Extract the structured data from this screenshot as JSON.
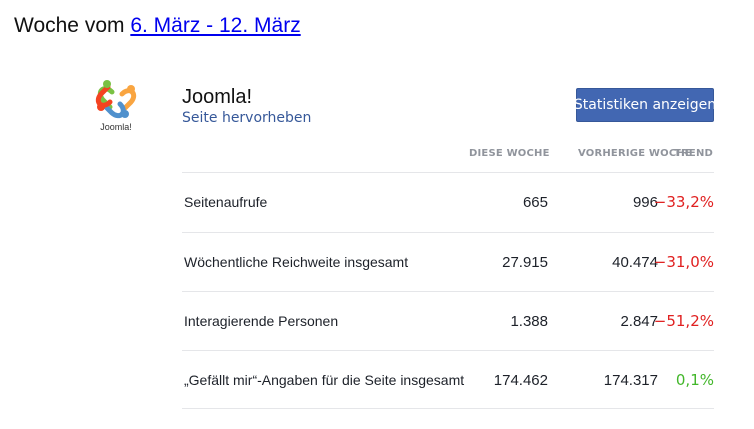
{
  "heading": {
    "prefix": "Woche vom ",
    "range_link": "6. März - 12. März"
  },
  "page": {
    "name": "Joomla!",
    "highlight_link": "Seite hervorheben",
    "logo_icon": "joomla-logo",
    "logo_text": "Joomla!"
  },
  "button": {
    "label": "Statistiken anzeigen"
  },
  "columns": {
    "this_week": "DIESE WOCHE",
    "previous_week": "VORHERIGE WOCHE",
    "trend": "TREND"
  },
  "colors": {
    "negative": "#e02020",
    "positive": "#42b72a",
    "button": "#4267b2"
  },
  "rows": [
    {
      "label": "Seitenaufrufe",
      "this_week": "665",
      "previous_week": "996",
      "trend": "−33,2%",
      "trend_type": "negative"
    },
    {
      "label": "Wöchentliche Reichweite insgesamt",
      "this_week": "27.915",
      "previous_week": "40.474",
      "trend": "−31,0%",
      "trend_type": "negative"
    },
    {
      "label": "Interagierende Personen",
      "this_week": "1.388",
      "previous_week": "2.847",
      "trend": "−51,2%",
      "trend_type": "negative"
    },
    {
      "label": "„Gefällt mir“-Angaben für die Seite insgesamt",
      "this_week": "174.462",
      "previous_week": "174.317",
      "trend": "0,1%",
      "trend_type": "positive"
    }
  ]
}
